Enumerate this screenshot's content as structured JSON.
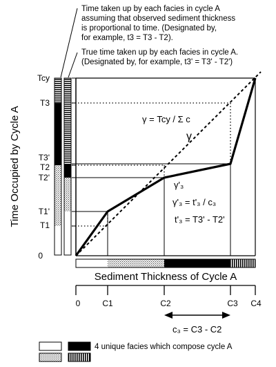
{
  "annotations": {
    "top_line1": "Time  taken  up  by  each facies  in  cycle  A",
    "top_line2": "assuming  that  observed  sediment thickness",
    "top_line3": "is proportional to time.  (Designated by,",
    "top_line4": "for  example,  t3 = T3 - T2).",
    "mid_line1": "True time taken up by each facies  in  cycle  A.",
    "mid_line2": "(Designated by,  for  example,  t3' = T3' - T2')"
  },
  "axes": {
    "y_title": "Time Occupied by Cycle A",
    "x_title": "Sediment Thickness of Cycle A",
    "y_labels": {
      "Tcy": "Tcy",
      "T3": "T3",
      "T3p": "T3'",
      "T2": "T2",
      "T2p": "T2'",
      "T1p": "T1'",
      "T1": "T1",
      "zero": "0"
    },
    "x_labels": {
      "zero": "0",
      "C1": "C1",
      "C2": "C2",
      "C3": "C3",
      "C4": "C4"
    }
  },
  "equations": {
    "gamma_eq": "γ  =  Tcy  /  Σ c",
    "gamma": "γ",
    "gamma3": "γ'₃",
    "gamma3_eq": "γ'₃ = t'₃ / c₃",
    "t3_eq": "t'₃  = T3' - T2'",
    "c3_eq": "c₃  =  C3 - C2"
  },
  "legend": {
    "text": "4 unique facies which compose cycle A"
  }
}
